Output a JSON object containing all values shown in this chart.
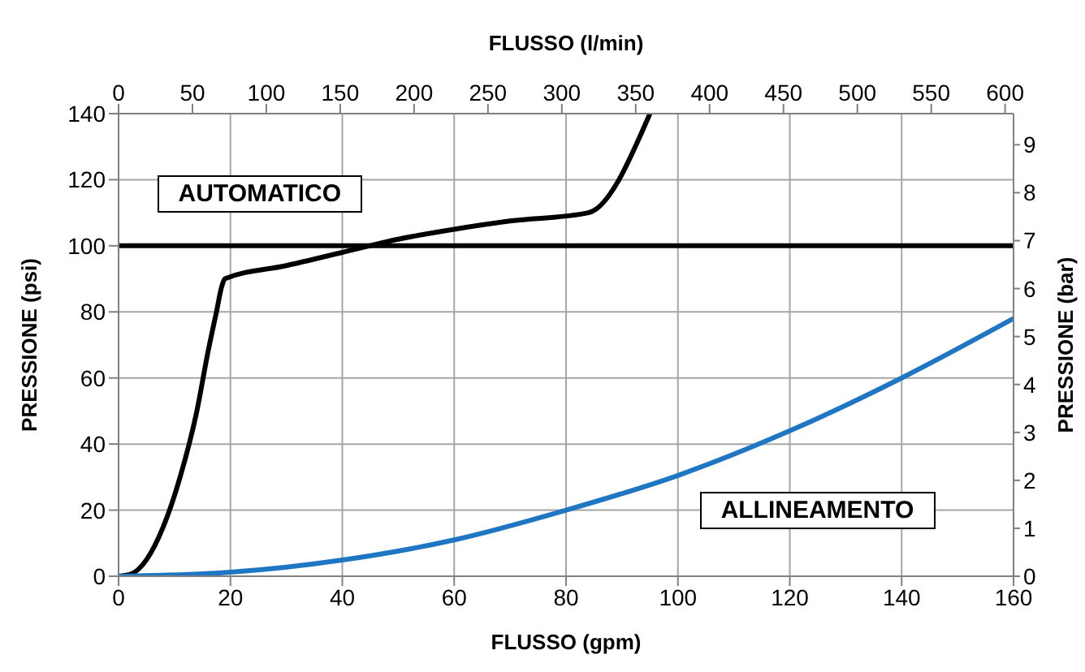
{
  "chart_data": {
    "type": "line",
    "xlabel": "FLUSSO (gpm)",
    "ylabel": "PRESSIONE  (psi)",
    "y2label": "PRESSIONE  (bar)",
    "x2label": "FLUSSO (l/min)",
    "xlim": [
      0,
      160
    ],
    "xticks": [
      0,
      20,
      40,
      60,
      80,
      100,
      120,
      140,
      160
    ],
    "ylim": [
      0,
      140
    ],
    "yticks": [
      0,
      20,
      40,
      60,
      80,
      100,
      120,
      140
    ],
    "x2lim": [
      0,
      605.7
    ],
    "x2ticks": [
      0,
      50,
      100,
      150,
      200,
      250,
      300,
      350,
      400,
      450,
      500,
      550,
      600
    ],
    "y2lim": [
      0,
      9.65
    ],
    "y2ticks": [
      0,
      1,
      2,
      3,
      4,
      5,
      6,
      7,
      8,
      9
    ],
    "grid": true,
    "legend": false,
    "marker": "none",
    "line_style": "solid",
    "ref_lines": [
      {
        "axis": "y",
        "value": 100,
        "color": "#000000"
      }
    ],
    "series": [
      {
        "name": "AUTOMATICO",
        "color": "#000000",
        "x": [
          0,
          2,
          5,
          8,
          11,
          14,
          16,
          17.5,
          18.5,
          19,
          30,
          40,
          50,
          60,
          70,
          84,
          95
        ],
        "values": [
          0,
          0.5,
          5,
          15,
          30,
          50,
          68,
          80,
          88,
          90,
          94,
          98,
          102,
          105,
          107.5,
          110,
          140
        ]
      },
      {
        "name": "ALLINEAMENTO",
        "color": "#1f77c4",
        "x": [
          0,
          20,
          40,
          60,
          80,
          100,
          120,
          140,
          160
        ],
        "values": [
          0,
          1.2,
          4.9,
          11,
          20,
          30.5,
          44,
          60,
          78
        ]
      }
    ]
  }
}
